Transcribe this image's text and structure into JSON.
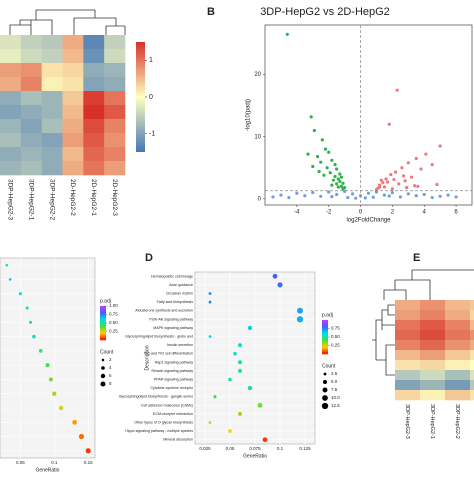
{
  "chart_data": [
    {
      "type": "heatmap",
      "columns": [
        "3DP-HepG2-3",
        "3DP-HepG2-1",
        "3DP-HepG2-2",
        "2D-HepG2-2",
        "2D-HepG2-1",
        "2D-HepG2-3"
      ],
      "values": [
        [
          -0.3,
          -0.5,
          -0.6,
          0.6,
          -1.3,
          -0.5
        ],
        [
          -0.2,
          -0.4,
          -0.5,
          0.5,
          -1.2,
          -0.4
        ],
        [
          0.7,
          0.8,
          0.2,
          0.3,
          -0.9,
          -0.8
        ],
        [
          0.6,
          0.9,
          0.1,
          0.2,
          -1.0,
          -0.9
        ],
        [
          -0.9,
          -0.7,
          -0.8,
          0.4,
          1.4,
          1.0
        ],
        [
          -1.0,
          -0.9,
          -0.8,
          0.5,
          1.5,
          1.2
        ],
        [
          -0.8,
          -1.0,
          -0.7,
          0.6,
          1.3,
          0.9
        ],
        [
          -0.7,
          -0.9,
          -1.0,
          0.7,
          1.2,
          0.8
        ],
        [
          -0.9,
          -0.8,
          -0.9,
          0.5,
          1.1,
          0.9
        ],
        [
          -0.8,
          -0.7,
          -0.9,
          0.6,
          1.0,
          0.7
        ]
      ],
      "clim": [
        -1.5,
        1.5
      ],
      "colorbar_ticks": [
        1,
        0,
        -1
      ],
      "colors": [
        "#4575b4",
        "#ffffbf",
        "#d73027"
      ]
    },
    {
      "type": "scatter",
      "panel": "B",
      "title": "3DP-HepG2 vs 2D-HepG2",
      "xlabel": "log2FoldChange",
      "ylabel": "-log10(padj)",
      "xlim": [
        -6,
        7
      ],
      "xticks": [
        -4,
        -2,
        0,
        2,
        4,
        6
      ],
      "ylim": [
        -1,
        28
      ],
      "yticks": [
        0,
        10,
        20
      ],
      "vline": 0,
      "hline": 1.3,
      "series": [
        {
          "color": "#2db34a",
          "x": [
            -4.6,
            -3.1,
            -2.9,
            -2.4,
            -2.2,
            -2.0,
            -1.8,
            -1.6,
            -1.5,
            -1.3,
            -1.2,
            -1.1,
            -2.7,
            -2.5,
            -1.9,
            -1.4,
            -1.7,
            -2.1,
            -3.3,
            -1.2,
            -1.0,
            -1.5,
            -2.3,
            -1.8,
            -1.1,
            -2.6,
            -3.0,
            -1.4,
            -1.6,
            -1.3
          ],
          "values": [
            26.5,
            13.2,
            11.0,
            9.5,
            8.0,
            7.5,
            6.2,
            5.5,
            4.8,
            4.0,
            3.5,
            2.5,
            6.8,
            5.9,
            4.2,
            3.2,
            3.0,
            5.0,
            7.2,
            2.0,
            1.8,
            2.4,
            3.8,
            2.2,
            1.6,
            4.4,
            5.2,
            1.9,
            3.6,
            2.8
          ]
        },
        {
          "color": "#f07878",
          "x": [
            2.3,
            1.8,
            5.0,
            4.1,
            3.5,
            3.0,
            2.6,
            2.2,
            1.9,
            1.6,
            1.4,
            1.2,
            1.1,
            3.8,
            3.2,
            2.8,
            2.4,
            4.5,
            1.5,
            1.3,
            2.0,
            2.7,
            3.4,
            1.7,
            1.0,
            4.8,
            2.9,
            1.2,
            2.1,
            3.6
          ],
          "values": [
            17.5,
            12.0,
            8.5,
            7.2,
            6.5,
            5.8,
            5.0,
            4.3,
            3.9,
            3.2,
            2.6,
            2.2,
            1.7,
            4.8,
            3.5,
            2.9,
            2.4,
            5.5,
            1.9,
            3.0,
            1.6,
            3.7,
            2.1,
            2.7,
            1.5,
            2.3,
            1.8,
            1.9,
            3.1,
            2.0
          ]
        },
        {
          "color": "#6b9fe3",
          "x": [
            -5.5,
            -5,
            -4.5,
            -4,
            -3.5,
            -3,
            -2.5,
            -2,
            -1.5,
            -1,
            -0.5,
            0,
            0.5,
            1,
            1.5,
            2,
            2.5,
            3,
            3.5,
            4,
            4.5,
            5,
            5.5,
            6,
            -0.8,
            -0.3,
            0.3,
            0.8,
            -1.8,
            1.8
          ],
          "values": [
            0.3,
            0.6,
            0.2,
            0.9,
            0.5,
            1.0,
            0.4,
            1.1,
            0.7,
            1.2,
            0.8,
            0.5,
            0.9,
            1.1,
            0.6,
            1.0,
            0.3,
            0.8,
            0.5,
            0.7,
            0.2,
            0.4,
            0.6,
            0.3,
            0.2,
            0.1,
            0.15,
            0.25,
            0.35,
            0.45
          ]
        }
      ]
    },
    {
      "type": "dotplot",
      "xlabel": "GeneRatio",
      "categories": [
        null,
        null,
        null,
        null,
        null,
        null,
        null,
        null,
        null,
        null,
        null,
        null,
        null,
        null
      ],
      "values": [
        0.03,
        0.035,
        0.05,
        0.06,
        0.065,
        0.07,
        0.08,
        0.09,
        0.095,
        0.1,
        0.11,
        0.13,
        0.14,
        0.15
      ],
      "count": [
        2,
        2,
        3,
        3,
        3,
        4,
        4,
        5,
        5,
        6,
        6,
        7,
        8,
        8
      ],
      "padj": [
        0.6,
        0.65,
        0.6,
        0.55,
        0.5,
        0.55,
        0.45,
        0.4,
        0.35,
        0.3,
        0.25,
        0.15,
        0.1,
        0.05
      ],
      "xlim": [
        0.02,
        0.16
      ],
      "xticks": [
        0.05,
        0.1,
        0.15
      ],
      "count_title": "Count",
      "count_ticks": [
        2,
        4,
        6,
        8
      ],
      "padj_title": "p.adj",
      "padj_lim": [
        0,
        1
      ],
      "padj_ticks": [
        {
          "value": 1,
          "label": "1.00"
        },
        {
          "value": 0.75,
          "label": "0.75"
        },
        {
          "value": 0.5,
          "label": "0.50"
        },
        {
          "value": 0.25,
          "label": "0.25"
        }
      ],
      "colors": [
        "#ff0000",
        "#ffd000",
        "#40e040",
        "#00e0e0",
        "#4060ff",
        "#c040ff"
      ]
    },
    {
      "type": "dotplot",
      "panel": "D",
      "xlabel": "GeneRatio",
      "ylabel": "Description",
      "categories": [
        "Hematopoietic cell lineage",
        "Axon guidance",
        "Circadian rhythm",
        "Fatty acid biosynthesis",
        "Aldosterone synthesis and secretion",
        "PI3K-Akt signaling pathway",
        "MAPK signaling pathway",
        "Glycosphingolipid biosynthesis - globo and",
        "Insulin secretion",
        "Th1 and Th2 cell differentiation",
        "Rap1 signaling pathway",
        "Relaxin signaling pathway",
        "PPAR signaling pathway",
        "Cytokine-cytokine receptor",
        "Glycosphingolipid biosynthesis - ganglio series",
        "Cell adhesion molecules (CAMs)",
        "ECM-receptor interaction",
        "Other types of O-glycan biosynthesis",
        "Hippo signaling pathway - multiple species",
        "Mineral absorption"
      ],
      "values": [
        0.095,
        0.1,
        0.03,
        0.03,
        0.12,
        0.12,
        0.07,
        0.03,
        0.06,
        0.055,
        0.06,
        0.06,
        0.05,
        0.07,
        0.035,
        0.08,
        0.06,
        0.03,
        0.05,
        0.085
      ],
      "count": [
        7,
        8,
        2.5,
        2.5,
        11,
        12.5,
        6,
        2.5,
        5,
        4,
        5,
        5,
        4,
        6,
        3,
        7,
        5,
        2.5,
        4,
        7
      ],
      "padj": [
        0.8,
        0.78,
        0.75,
        0.74,
        0.7,
        0.68,
        0.62,
        0.6,
        0.58,
        0.57,
        0.55,
        0.54,
        0.52,
        0.5,
        0.45,
        0.35,
        0.3,
        0.25,
        0.2,
        0.05
      ],
      "xlim": [
        0.015,
        0.135
      ],
      "xticks": [
        0.025,
        0.05,
        0.075,
        0.1,
        0.125
      ],
      "count_title": "Count",
      "count_ticks": [
        {
          "value": 2.5,
          "label": "2.5"
        },
        {
          "value": 5,
          "label": "5.0"
        },
        {
          "value": 7.5,
          "label": "7.5"
        },
        {
          "value": 10,
          "label": "10.0"
        },
        {
          "value": 12.5,
          "label": "12.5"
        }
      ],
      "padj_title": "p.adj",
      "padj_lim": [
        0,
        1
      ],
      "padj_ticks": [
        {
          "value": 0.75,
          "label": "0.75"
        },
        {
          "value": 0.5,
          "label": "0.50"
        },
        {
          "value": 0.25,
          "label": "0.25"
        }
      ],
      "colors": [
        "#ff0000",
        "#ffd000",
        "#40e040",
        "#00e0e0",
        "#4060ff",
        "#c040ff"
      ]
    },
    {
      "type": "heatmap",
      "panel": "E",
      "columns": [
        "3DP-HepG2-3",
        "3DP-HepG2-1",
        "3DP-HepG2-2",
        null
      ],
      "values": [
        [
          0.6,
          0.8,
          0.5,
          0.4
        ],
        [
          0.7,
          0.9,
          0.6,
          0.3
        ],
        [
          1.0,
          1.2,
          0.9,
          0.5
        ],
        [
          1.1,
          1.3,
          1.0,
          0.8
        ],
        [
          0.9,
          1.1,
          0.8,
          0.6
        ],
        [
          0.5,
          0.7,
          0.4,
          0.2
        ],
        [
          0.2,
          0.3,
          0.1,
          0.0
        ],
        [
          -0.6,
          -0.4,
          -0.7,
          -0.3
        ],
        [
          -1.0,
          -0.8,
          -1.1,
          -0.6
        ],
        [
          0.3,
          0.1,
          0.4,
          0.2
        ]
      ],
      "clim": [
        -1.5,
        1.5
      ],
      "colors": [
        "#4575b4",
        "#ffffbf",
        "#d73027"
      ]
    }
  ]
}
